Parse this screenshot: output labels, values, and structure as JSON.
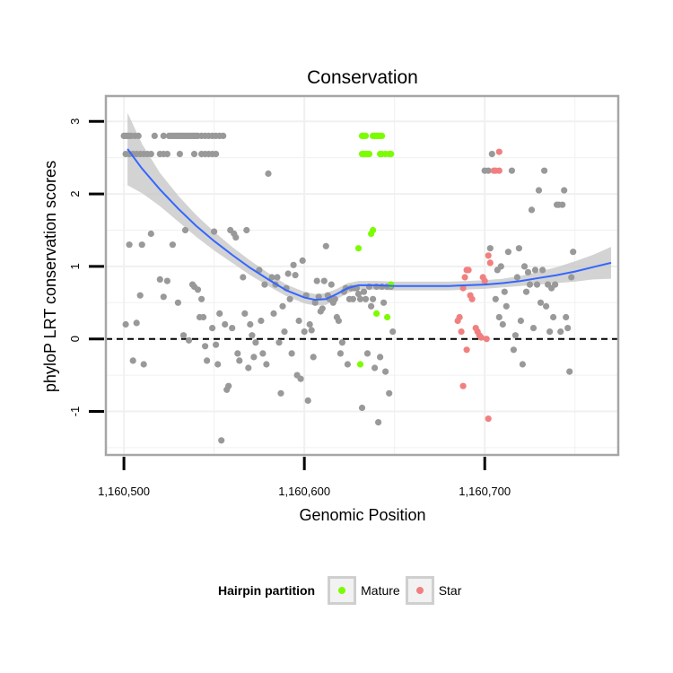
{
  "chart_data": {
    "type": "scatter",
    "title": "Conservation",
    "xlabel": "Genomic Position",
    "ylabel": "phyloP LRT conservation scores",
    "xlim": [
      1160490,
      1160774
    ],
    "ylim": [
      -1.6,
      3.35
    ],
    "x_ticks": [
      1160500,
      1160600,
      1160700
    ],
    "x_tick_labels": [
      "1,160,500",
      "1,160,600",
      "1,160,700"
    ],
    "y_ticks": [
      -1,
      0,
      1,
      2,
      3
    ],
    "y_tick_labels": [
      "-1",
      "0",
      "1",
      "2",
      "3"
    ],
    "reference_line": {
      "y": 0,
      "style": "dashed"
    },
    "legend": {
      "title": "Hairpin partition",
      "placement": "bottom",
      "entries": [
        {
          "label": "Mature",
          "color": "#7cfc00"
        },
        {
          "label": "Star",
          "color": "#f08080"
        }
      ]
    },
    "colors": {
      "other": "#999999",
      "Mature": "#7cfc00",
      "Star": "#f08080",
      "smooth": "#3366ff",
      "band": "#c8c8c8",
      "panel_border": "#a6a6a6",
      "grid": "#f0f0f0"
    },
    "smooth": {
      "x": [
        1160502,
        1160510,
        1160520,
        1160530,
        1160540,
        1160550,
        1160560,
        1160570,
        1160580,
        1160590,
        1160600,
        1160606,
        1160612,
        1160618,
        1160624,
        1160630,
        1160640,
        1160650,
        1160660,
        1160670,
        1160680,
        1160690,
        1160700,
        1160710,
        1160720,
        1160730,
        1160740,
        1160750,
        1160760,
        1160770
      ],
      "y": [
        2.62,
        2.35,
        2.06,
        1.8,
        1.56,
        1.35,
        1.16,
        0.98,
        0.82,
        0.67,
        0.57,
        0.54,
        0.55,
        0.62,
        0.7,
        0.74,
        0.74,
        0.73,
        0.73,
        0.73,
        0.73,
        0.74,
        0.75,
        0.77,
        0.8,
        0.84,
        0.88,
        0.93,
        0.99,
        1.05
      ],
      "se": [
        0.5,
        0.34,
        0.23,
        0.18,
        0.15,
        0.13,
        0.11,
        0.1,
        0.09,
        0.08,
        0.08,
        0.08,
        0.08,
        0.07,
        0.07,
        0.06,
        0.06,
        0.06,
        0.06,
        0.06,
        0.06,
        0.06,
        0.06,
        0.06,
        0.07,
        0.09,
        0.11,
        0.14,
        0.17,
        0.22
      ]
    },
    "series": [
      {
        "name": "other",
        "points": [
          [
            1160500,
            2.8
          ],
          [
            1160501,
            2.8
          ],
          [
            1160502,
            2.8
          ],
          [
            1160503,
            2.8
          ],
          [
            1160504,
            2.8
          ],
          [
            1160506,
            2.8
          ],
          [
            1160508,
            2.8
          ],
          [
            1160501,
            2.55
          ],
          [
            1160503,
            2.55
          ],
          [
            1160505,
            2.55
          ],
          [
            1160507,
            2.55
          ],
          [
            1160509,
            2.55
          ],
          [
            1160511,
            2.55
          ],
          [
            1160513,
            2.55
          ],
          [
            1160515,
            2.55
          ],
          [
            1160520,
            2.55
          ],
          [
            1160522,
            2.55
          ],
          [
            1160524,
            2.55
          ],
          [
            1160517,
            2.8
          ],
          [
            1160522,
            2.8
          ],
          [
            1160525,
            2.8
          ],
          [
            1160526,
            2.8
          ],
          [
            1160527,
            2.8
          ],
          [
            1160528,
            2.8
          ],
          [
            1160529,
            2.8
          ],
          [
            1160530,
            2.8
          ],
          [
            1160531,
            2.8
          ],
          [
            1160532,
            2.8
          ],
          [
            1160533,
            2.8
          ],
          [
            1160534,
            2.8
          ],
          [
            1160535,
            2.8
          ],
          [
            1160536,
            2.8
          ],
          [
            1160537,
            2.8
          ],
          [
            1160538,
            2.8
          ],
          [
            1160539,
            2.8
          ],
          [
            1160540,
            2.8
          ],
          [
            1160541,
            2.8
          ],
          [
            1160543,
            2.8
          ],
          [
            1160545,
            2.8
          ],
          [
            1160547,
            2.8
          ],
          [
            1160549,
            2.8
          ],
          [
            1160551,
            2.8
          ],
          [
            1160553,
            2.8
          ],
          [
            1160555,
            2.8
          ],
          [
            1160531,
            2.55
          ],
          [
            1160539,
            2.55
          ],
          [
            1160543,
            2.55
          ],
          [
            1160545,
            2.55
          ],
          [
            1160547,
            2.55
          ],
          [
            1160549,
            2.55
          ],
          [
            1160551,
            2.55
          ],
          [
            1160501,
            0.2
          ],
          [
            1160503,
            1.3
          ],
          [
            1160505,
            -0.3
          ],
          [
            1160507,
            0.22
          ],
          [
            1160509,
            0.6
          ],
          [
            1160510,
            1.3
          ],
          [
            1160511,
            -0.35
          ],
          [
            1160515,
            1.45
          ],
          [
            1160520,
            0.82
          ],
          [
            1160522,
            0.58
          ],
          [
            1160524,
            0.8
          ],
          [
            1160527,
            1.3
          ],
          [
            1160530,
            0.5
          ],
          [
            1160533,
            0.05
          ],
          [
            1160534,
            1.5
          ],
          [
            1160536,
            -0.02
          ],
          [
            1160538,
            0.75
          ],
          [
            1160539,
            0.72
          ],
          [
            1160541,
            0.68
          ],
          [
            1160542,
            0.3
          ],
          [
            1160543,
            0.55
          ],
          [
            1160544,
            0.3
          ],
          [
            1160545,
            -0.1
          ],
          [
            1160546,
            -0.3
          ],
          [
            1160549,
            0.15
          ],
          [
            1160550,
            1.48
          ],
          [
            1160551,
            -0.08
          ],
          [
            1160552,
            -0.35
          ],
          [
            1160553,
            0.35
          ],
          [
            1160554,
            -1.4
          ],
          [
            1160556,
            0.2
          ],
          [
            1160557,
            -0.7
          ],
          [
            1160558,
            -0.65
          ],
          [
            1160559,
            1.5
          ],
          [
            1160560,
            0.15
          ],
          [
            1160561,
            1.45
          ],
          [
            1160562,
            1.4
          ],
          [
            1160563,
            -0.2
          ],
          [
            1160564,
            -0.3
          ],
          [
            1160566,
            0.85
          ],
          [
            1160567,
            0.35
          ],
          [
            1160568,
            1.5
          ],
          [
            1160569,
            -0.4
          ],
          [
            1160570,
            0.2
          ],
          [
            1160571,
            0.05
          ],
          [
            1160572,
            -0.25
          ],
          [
            1160573,
            -0.05
          ],
          [
            1160575,
            0.95
          ],
          [
            1160576,
            0.25
          ],
          [
            1160577,
            -0.2
          ],
          [
            1160578,
            0.75
          ],
          [
            1160579,
            -0.35
          ],
          [
            1160580,
            2.28
          ],
          [
            1160582,
            0.85
          ],
          [
            1160583,
            0.35
          ],
          [
            1160584,
            0.75
          ],
          [
            1160585,
            0.85
          ],
          [
            1160586,
            -0.05
          ],
          [
            1160587,
            -0.75
          ],
          [
            1160588,
            0.45
          ],
          [
            1160589,
            0.1
          ],
          [
            1160590,
            0.7
          ],
          [
            1160591,
            0.9
          ],
          [
            1160592,
            0.55
          ],
          [
            1160593,
            -0.2
          ],
          [
            1160594,
            1.02
          ],
          [
            1160595,
            0.88
          ],
          [
            1160596,
            -0.5
          ],
          [
            1160597,
            0.25
          ],
          [
            1160598,
            -0.55
          ],
          [
            1160599,
            1.08
          ],
          [
            1160600,
            0.1
          ],
          [
            1160601,
            0.6
          ],
          [
            1160602,
            -0.85
          ],
          [
            1160603,
            0.2
          ],
          [
            1160604,
            0.12
          ],
          [
            1160605,
            -0.25
          ],
          [
            1160606,
            0.5
          ],
          [
            1160607,
            0.8
          ],
          [
            1160608,
            0.58
          ],
          [
            1160609,
            0.38
          ],
          [
            1160610,
            0.42
          ],
          [
            1160611,
            0.8
          ],
          [
            1160612,
            1.28
          ],
          [
            1160613,
            0.6
          ],
          [
            1160614,
            0.55
          ],
          [
            1160615,
            0.75
          ],
          [
            1160616,
            0.5
          ],
          [
            1160617,
            0.55
          ],
          [
            1160618,
            0.3
          ],
          [
            1160619,
            0.25
          ],
          [
            1160620,
            -0.2
          ],
          [
            1160621,
            -0.05
          ],
          [
            1160622,
            0.65
          ],
          [
            1160623,
            0.7
          ],
          [
            1160624,
            -0.35
          ],
          [
            1160625,
            0.55
          ],
          [
            1160626,
            0.7
          ],
          [
            1160627,
            0.55
          ],
          [
            1160628,
            0.7
          ],
          [
            1160629,
            0.7
          ],
          [
            1160630,
            0.62
          ],
          [
            1160631,
            0.55
          ],
          [
            1160632,
            -0.95
          ],
          [
            1160633,
            0.65
          ],
          [
            1160634,
            0.55
          ],
          [
            1160635,
            -0.2
          ],
          [
            1160636,
            0.72
          ],
          [
            1160637,
            0.45
          ],
          [
            1160638,
            0.55
          ],
          [
            1160639,
            -0.4
          ],
          [
            1160640,
            0.72
          ],
          [
            1160641,
            -1.15
          ],
          [
            1160642,
            -0.25
          ],
          [
            1160643,
            0.72
          ],
          [
            1160644,
            0.5
          ],
          [
            1160645,
            -0.45
          ],
          [
            1160646,
            0.72
          ],
          [
            1160647,
            -0.75
          ],
          [
            1160648,
            0.72
          ],
          [
            1160649,
            0.1
          ],
          [
            1160700,
            2.32
          ],
          [
            1160702,
            2.32
          ],
          [
            1160703,
            1.25
          ],
          [
            1160704,
            2.55
          ],
          [
            1160706,
            0.55
          ],
          [
            1160707,
            0.95
          ],
          [
            1160708,
            0.3
          ],
          [
            1160709,
            1.0
          ],
          [
            1160710,
            0.2
          ],
          [
            1160711,
            0.65
          ],
          [
            1160712,
            0.45
          ],
          [
            1160713,
            1.2
          ],
          [
            1160715,
            2.32
          ],
          [
            1160716,
            -0.15
          ],
          [
            1160717,
            0.05
          ],
          [
            1160718,
            0.85
          ],
          [
            1160719,
            1.25
          ],
          [
            1160720,
            0.25
          ],
          [
            1160721,
            -0.35
          ],
          [
            1160722,
            1.0
          ],
          [
            1160723,
            0.65
          ],
          [
            1160724,
            0.92
          ],
          [
            1160725,
            0.75
          ],
          [
            1160726,
            1.78
          ],
          [
            1160727,
            0.15
          ],
          [
            1160728,
            0.95
          ],
          [
            1160729,
            0.75
          ],
          [
            1160730,
            2.05
          ],
          [
            1160731,
            0.5
          ],
          [
            1160732,
            0.95
          ],
          [
            1160733,
            2.32
          ],
          [
            1160734,
            0.45
          ],
          [
            1160735,
            0.75
          ],
          [
            1160736,
            0.1
          ],
          [
            1160737,
            0.7
          ],
          [
            1160738,
            0.3
          ],
          [
            1160739,
            0.75
          ],
          [
            1160740,
            1.85
          ],
          [
            1160741,
            1.85
          ],
          [
            1160742,
            0.1
          ],
          [
            1160743,
            1.85
          ],
          [
            1160744,
            2.05
          ],
          [
            1160745,
            0.3
          ],
          [
            1160746,
            0.15
          ],
          [
            1160747,
            -0.45
          ],
          [
            1160748,
            0.85
          ],
          [
            1160749,
            1.2
          ]
        ]
      },
      {
        "name": "Mature",
        "points": [
          [
            1160632,
            2.8
          ],
          [
            1160633,
            2.8
          ],
          [
            1160634,
            2.8
          ],
          [
            1160638,
            2.8
          ],
          [
            1160639,
            2.8
          ],
          [
            1160640,
            2.8
          ],
          [
            1160641,
            2.8
          ],
          [
            1160642,
            2.8
          ],
          [
            1160643,
            2.8
          ],
          [
            1160632,
            2.55
          ],
          [
            1160633,
            2.55
          ],
          [
            1160634,
            2.55
          ],
          [
            1160635,
            2.55
          ],
          [
            1160636,
            2.55
          ],
          [
            1160642,
            2.55
          ],
          [
            1160643,
            2.55
          ],
          [
            1160645,
            2.55
          ],
          [
            1160647,
            2.55
          ],
          [
            1160648,
            2.55
          ],
          [
            1160630,
            1.25
          ],
          [
            1160637,
            1.45
          ],
          [
            1160638,
            1.5
          ],
          [
            1160631,
            -0.35
          ],
          [
            1160640,
            0.35
          ],
          [
            1160646,
            0.3
          ],
          [
            1160648,
            0.75
          ]
        ]
      },
      {
        "name": "Star",
        "points": [
          [
            1160705,
            2.32
          ],
          [
            1160706,
            2.32
          ],
          [
            1160708,
            2.32
          ],
          [
            1160708,
            2.58
          ],
          [
            1160702,
            1.15
          ],
          [
            1160703,
            1.05
          ],
          [
            1160685,
            0.25
          ],
          [
            1160686,
            0.3
          ],
          [
            1160687,
            0.1
          ],
          [
            1160688,
            0.7
          ],
          [
            1160689,
            0.85
          ],
          [
            1160690,
            0.95
          ],
          [
            1160691,
            0.95
          ],
          [
            1160692,
            0.6
          ],
          [
            1160693,
            0.55
          ],
          [
            1160688,
            -0.65
          ],
          [
            1160690,
            -0.15
          ],
          [
            1160695,
            0.15
          ],
          [
            1160696,
            0.1
          ],
          [
            1160697,
            0.05
          ],
          [
            1160698,
            0.02
          ],
          [
            1160699,
            0.85
          ],
          [
            1160700,
            0.8
          ],
          [
            1160701,
            0.0
          ],
          [
            1160702,
            -1.1
          ]
        ]
      }
    ]
  }
}
